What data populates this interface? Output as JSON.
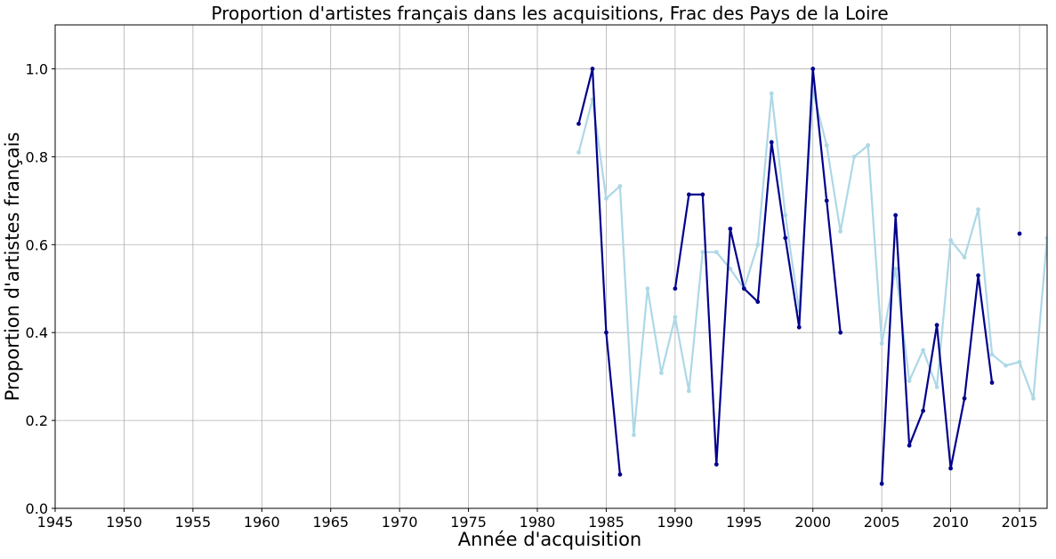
{
  "chart_data": {
    "type": "line",
    "title": "Proportion d'artistes français dans les acquisitions, Frac des Pays de la Loire",
    "xlabel": "Année d'acquisition",
    "ylabel": "Proportion d'artistes français",
    "xlim": [
      1945,
      2017
    ],
    "ylim": [
      0,
      1.1
    ],
    "xticks": [
      1945,
      1950,
      1955,
      1960,
      1965,
      1970,
      1975,
      1980,
      1985,
      1990,
      1995,
      2000,
      2005,
      2010,
      2015
    ],
    "xtick_labels": [
      "1945",
      "1950",
      "1955",
      "1960",
      "1965",
      "1970",
      "1975",
      "1980",
      "1985",
      "1990",
      "1995",
      "2000",
      "2005",
      "2010",
      "2015"
    ],
    "yticks": [
      0.0,
      0.2,
      0.4,
      0.6,
      0.8,
      1.0
    ],
    "ytick_labels": [
      "0.0",
      "0.2",
      "0.4",
      "0.6",
      "0.8",
      "1.0"
    ],
    "grid": true,
    "series": [
      {
        "color": "#add8e6",
        "points": [
          [
            1983,
            0.81
          ],
          [
            1984,
            0.93
          ],
          [
            1985,
            0.705
          ],
          [
            1986,
            0.733
          ],
          [
            1987,
            0.167
          ],
          [
            1988,
            0.5
          ],
          [
            1989,
            0.308
          ],
          [
            1990,
            0.435
          ],
          [
            1991,
            0.267
          ],
          [
            1992,
            0.583
          ],
          [
            1993,
            0.583
          ],
          [
            1994,
            0.545
          ],
          [
            1995,
            0.5
          ],
          [
            1996,
            0.6
          ],
          [
            1997,
            0.944
          ],
          [
            1998,
            0.667
          ],
          [
            1999,
            0.45
          ],
          [
            2000,
            0.95
          ],
          [
            2001,
            0.826
          ],
          [
            2002,
            0.63
          ],
          [
            2003,
            0.8
          ],
          [
            2004,
            0.826
          ],
          [
            2005,
            0.375
          ],
          [
            2006,
            0.545
          ],
          [
            2007,
            0.29
          ],
          [
            2008,
            0.36
          ],
          [
            2009,
            0.276
          ],
          [
            2010,
            0.61
          ],
          [
            2011,
            0.571
          ],
          [
            2012,
            0.68
          ],
          [
            2013,
            0.35
          ],
          [
            2014,
            0.325
          ],
          [
            2015,
            0.333
          ],
          [
            2016,
            0.25
          ],
          [
            2017,
            0.615
          ]
        ]
      },
      {
        "color": "#00008b",
        "points": [
          [
            1983,
            0.875
          ],
          [
            1984,
            1.0
          ],
          [
            1985,
            0.4
          ],
          [
            1986,
            0.077
          ],
          [
            1987,
            null
          ],
          [
            1988,
            null
          ],
          [
            1989,
            null
          ],
          [
            1990,
            0.5
          ],
          [
            1991,
            0.714
          ],
          [
            1992,
            0.714
          ],
          [
            1993,
            0.1
          ],
          [
            1994,
            0.636
          ],
          [
            1995,
            0.5
          ],
          [
            1996,
            0.47
          ],
          [
            1997,
            0.833
          ],
          [
            1998,
            0.615
          ],
          [
            1999,
            0.412
          ],
          [
            2000,
            1.0
          ],
          [
            2001,
            0.7
          ],
          [
            2002,
            0.4
          ],
          [
            2003,
            null
          ],
          [
            2004,
            null
          ],
          [
            2005,
            0.056
          ],
          [
            2006,
            0.667
          ],
          [
            2007,
            0.143
          ],
          [
            2008,
            0.222
          ],
          [
            2009,
            0.417
          ],
          [
            2010,
            0.091
          ],
          [
            2011,
            0.25
          ],
          [
            2012,
            0.53
          ],
          [
            2013,
            0.286
          ],
          [
            2014,
            null
          ],
          [
            2015,
            0.625
          ]
        ]
      }
    ]
  }
}
